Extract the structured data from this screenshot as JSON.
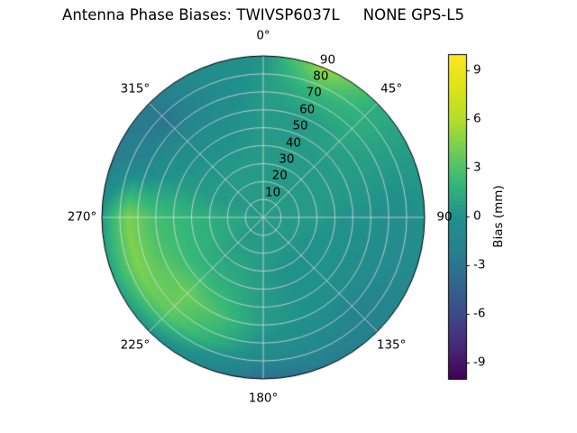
{
  "chart_data": {
    "type": "heatmap",
    "projection": "polar",
    "title": "Antenna Phase Biases: TWIVSP6037L     NONE GPS-L5",
    "theta_labels": [
      "0°",
      "45°",
      "90",
      "135°",
      "180°",
      "225°",
      "270°",
      "315°"
    ],
    "theta_angles_deg": [
      0,
      45,
      90,
      135,
      180,
      225,
      270,
      315
    ],
    "theta_direction": "clockwise-from-top",
    "radial_ticks": [
      10,
      20,
      30,
      40,
      50,
      60,
      70,
      80,
      90
    ],
    "radial_max": 90,
    "rlabel_angle_deg": 22.5,
    "grid_on": true,
    "colorbar": {
      "label": "Bias (mm)",
      "ticks": [
        9,
        6,
        3,
        0,
        -3,
        -6,
        -9
      ],
      "vmin": -10,
      "vmax": 10,
      "position": "right"
    },
    "colormap": {
      "name": "viridis",
      "stops": [
        "#440154",
        "#482878",
        "#3e4a89",
        "#31688e",
        "#26828e",
        "#21918c",
        "#35b779",
        "#6dcd59",
        "#b4de2c",
        "#dfe318",
        "#fde725"
      ]
    },
    "grid": {
      "azimuth_deg": [
        0,
        22.5,
        45,
        67.5,
        90,
        112.5,
        135,
        157.5,
        180,
        202.5,
        225,
        247.5,
        270,
        292.5,
        315,
        337.5
      ],
      "zenith_deg": [
        0,
        15,
        30,
        45,
        60,
        75,
        90
      ],
      "bias_mm": [
        [
          0.5,
          0.5,
          0.5,
          0.5,
          0.5,
          0.5,
          0.0
        ],
        [
          0.5,
          0.5,
          0.5,
          0.5,
          0.5,
          2.0,
          5.5
        ],
        [
          0.5,
          0.5,
          0.5,
          0.5,
          1.0,
          1.5,
          1.5
        ],
        [
          0.5,
          0.5,
          0.5,
          0.5,
          0.5,
          0.5,
          0.5
        ],
        [
          0.5,
          0.5,
          0.5,
          0.0,
          0.0,
          -0.5,
          0.0
        ],
        [
          0.5,
          0.5,
          0.0,
          0.0,
          -0.5,
          -1.0,
          -1.0
        ],
        [
          0.5,
          0.5,
          0.0,
          0.0,
          -0.5,
          -2.0,
          -2.0
        ],
        [
          0.5,
          0.5,
          0.0,
          0.0,
          0.0,
          -1.0,
          -2.5
        ],
        [
          0.5,
          0.5,
          0.5,
          0.5,
          0.5,
          -0.5,
          -3.5
        ],
        [
          0.5,
          0.5,
          1.0,
          1.5,
          2.5,
          1.5,
          -1.5
        ],
        [
          0.5,
          0.5,
          1.0,
          2.0,
          4.0,
          3.5,
          0.0
        ],
        [
          0.5,
          1.0,
          1.5,
          2.0,
          3.0,
          4.5,
          1.0
        ],
        [
          0.5,
          1.0,
          1.5,
          2.0,
          2.5,
          4.5,
          0.5
        ],
        [
          0.5,
          0.5,
          0.5,
          0.5,
          0.0,
          -1.5,
          -2.5
        ],
        [
          0.5,
          0.5,
          0.5,
          0.0,
          -1.0,
          -3.0,
          -2.5
        ],
        [
          0.5,
          0.5,
          0.5,
          0.0,
          -0.5,
          -1.0,
          -0.5
        ]
      ]
    }
  }
}
